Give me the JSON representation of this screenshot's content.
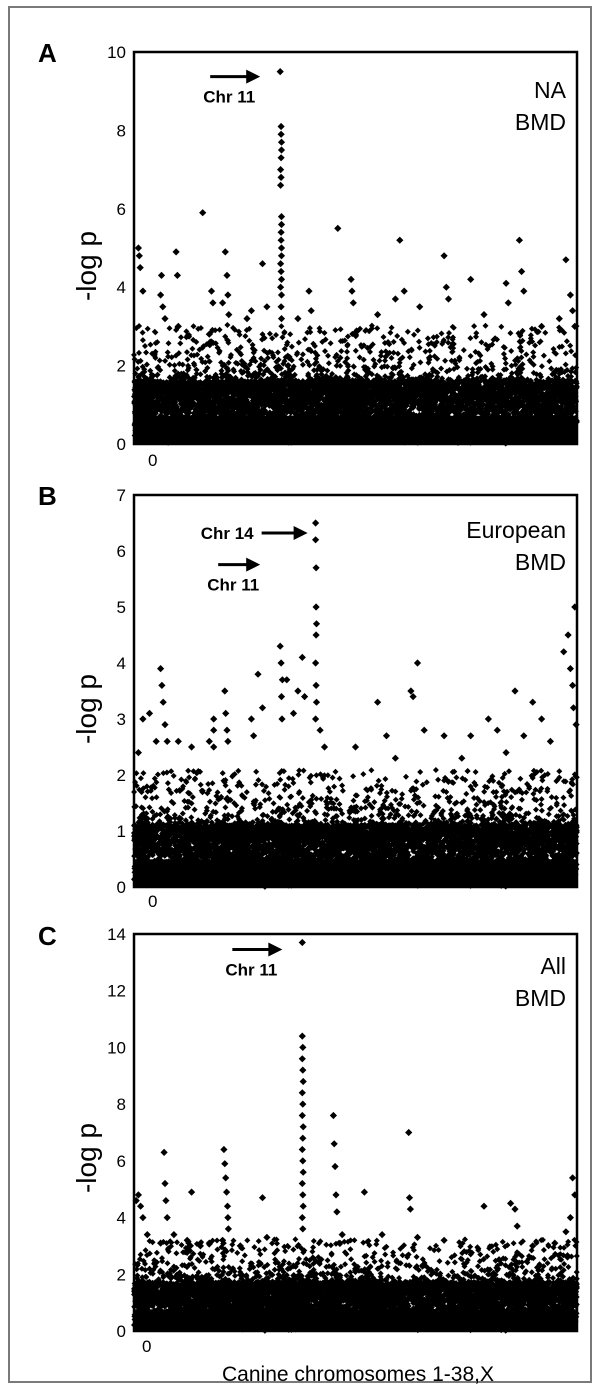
{
  "figure": {
    "xlabel": "Canine chromosomes 1-38,X"
  },
  "chart_data": [
    {
      "type": "scatter",
      "panel": "A",
      "ylabel": "-log p",
      "ylim": [
        0,
        10
      ],
      "yticks": [
        0,
        2,
        4,
        6,
        8,
        10
      ],
      "x_origin_label": "0",
      "legend": [
        "NA",
        "BMD"
      ],
      "annotations": [
        {
          "label": "Chr 11",
          "x": 0.33,
          "y": 9.5
        }
      ],
      "points": [
        {
          "x": 0.01,
          "y": 5.0
        },
        {
          "x": 0.012,
          "y": 4.8
        },
        {
          "x": 0.014,
          "y": 4.5
        },
        {
          "x": 0.02,
          "y": 3.9
        },
        {
          "x": 0.06,
          "y": 3.8
        },
        {
          "x": 0.065,
          "y": 3.5
        },
        {
          "x": 0.07,
          "y": 3.2
        },
        {
          "x": 0.062,
          "y": 4.3
        },
        {
          "x": 0.095,
          "y": 4.9
        },
        {
          "x": 0.098,
          "y": 4.3
        },
        {
          "x": 0.1,
          "y": 3.0
        },
        {
          "x": 0.155,
          "y": 5.9
        },
        {
          "x": 0.175,
          "y": 3.9
        },
        {
          "x": 0.178,
          "y": 3.6
        },
        {
          "x": 0.17,
          "y": 2.8
        },
        {
          "x": 0.172,
          "y": 2.6
        },
        {
          "x": 0.2,
          "y": 3.6
        },
        {
          "x": 0.206,
          "y": 4.9
        },
        {
          "x": 0.21,
          "y": 4.3
        },
        {
          "x": 0.212,
          "y": 3.8
        },
        {
          "x": 0.214,
          "y": 3.3
        },
        {
          "x": 0.255,
          "y": 3.2
        },
        {
          "x": 0.265,
          "y": 3.4
        },
        {
          "x": 0.29,
          "y": 4.6
        },
        {
          "x": 0.3,
          "y": 3.5
        },
        {
          "x": 0.33,
          "y": 9.5
        },
        {
          "x": 0.332,
          "y": 8.1
        },
        {
          "x": 0.332,
          "y": 7.9
        },
        {
          "x": 0.333,
          "y": 7.7
        },
        {
          "x": 0.333,
          "y": 7.5
        },
        {
          "x": 0.332,
          "y": 7.3
        },
        {
          "x": 0.331,
          "y": 7.0
        },
        {
          "x": 0.332,
          "y": 6.8
        },
        {
          "x": 0.331,
          "y": 6.6
        },
        {
          "x": 0.333,
          "y": 5.8
        },
        {
          "x": 0.333,
          "y": 5.6
        },
        {
          "x": 0.332,
          "y": 5.4
        },
        {
          "x": 0.332,
          "y": 5.2
        },
        {
          "x": 0.333,
          "y": 5.0
        },
        {
          "x": 0.333,
          "y": 4.8
        },
        {
          "x": 0.331,
          "y": 4.6
        },
        {
          "x": 0.332,
          "y": 4.4
        },
        {
          "x": 0.333,
          "y": 4.2
        },
        {
          "x": 0.331,
          "y": 4.0
        },
        {
          "x": 0.333,
          "y": 3.8
        },
        {
          "x": 0.332,
          "y": 3.5
        },
        {
          "x": 0.333,
          "y": 3.2
        },
        {
          "x": 0.37,
          "y": 3.2
        },
        {
          "x": 0.395,
          "y": 3.9
        },
        {
          "x": 0.4,
          "y": 3.4
        },
        {
          "x": 0.46,
          "y": 5.5
        },
        {
          "x": 0.49,
          "y": 4.2
        },
        {
          "x": 0.492,
          "y": 3.9
        },
        {
          "x": 0.495,
          "y": 3.6
        },
        {
          "x": 0.55,
          "y": 3.3
        },
        {
          "x": 0.59,
          "y": 3.7
        },
        {
          "x": 0.6,
          "y": 5.2
        },
        {
          "x": 0.61,
          "y": 3.9
        },
        {
          "x": 0.645,
          "y": 3.5
        },
        {
          "x": 0.7,
          "y": 4.8
        },
        {
          "x": 0.705,
          "y": 4.0
        },
        {
          "x": 0.71,
          "y": 3.7
        },
        {
          "x": 0.76,
          "y": 4.2
        },
        {
          "x": 0.79,
          "y": 3.3
        },
        {
          "x": 0.84,
          "y": 4.1
        },
        {
          "x": 0.845,
          "y": 3.6
        },
        {
          "x": 0.87,
          "y": 5.2
        },
        {
          "x": 0.875,
          "y": 4.4
        },
        {
          "x": 0.88,
          "y": 3.9
        },
        {
          "x": 0.92,
          "y": 3.0
        },
        {
          "x": 0.96,
          "y": 3.2
        },
        {
          "x": 0.975,
          "y": 4.7
        },
        {
          "x": 0.985,
          "y": 3.8
        },
        {
          "x": 0.99,
          "y": 3.4
        },
        {
          "x": 0.995,
          "y": 3.0
        }
      ]
    },
    {
      "type": "scatter",
      "panel": "B",
      "ylabel": "-log p",
      "ylim": [
        0,
        7
      ],
      "yticks": [
        0,
        1,
        2,
        3,
        4,
        5,
        6,
        7
      ],
      "x_origin_label": "0",
      "legend": [
        "European",
        "BMD"
      ],
      "annotations": [
        {
          "label": "Chr 14",
          "x": 0.41,
          "y": 6.5
        },
        {
          "label": "Chr 11",
          "x": 0.33,
          "y": 5.9
        }
      ],
      "points": [
        {
          "x": 0.01,
          "y": 2.4
        },
        {
          "x": 0.02,
          "y": 3.0
        },
        {
          "x": 0.035,
          "y": 3.1
        },
        {
          "x": 0.05,
          "y": 2.6
        },
        {
          "x": 0.06,
          "y": 3.9
        },
        {
          "x": 0.063,
          "y": 3.6
        },
        {
          "x": 0.066,
          "y": 3.3
        },
        {
          "x": 0.07,
          "y": 2.9
        },
        {
          "x": 0.075,
          "y": 2.6
        },
        {
          "x": 0.1,
          "y": 2.6
        },
        {
          "x": 0.13,
          "y": 2.5
        },
        {
          "x": 0.17,
          "y": 2.6
        },
        {
          "x": 0.18,
          "y": 3.0
        },
        {
          "x": 0.18,
          "y": 2.8
        },
        {
          "x": 0.18,
          "y": 2.5
        },
        {
          "x": 0.205,
          "y": 3.5
        },
        {
          "x": 0.207,
          "y": 3.1
        },
        {
          "x": 0.21,
          "y": 2.8
        },
        {
          "x": 0.212,
          "y": 2.6
        },
        {
          "x": 0.265,
          "y": 3.0
        },
        {
          "x": 0.27,
          "y": 2.7
        },
        {
          "x": 0.28,
          "y": 3.8
        },
        {
          "x": 0.29,
          "y": 3.2
        },
        {
          "x": 0.33,
          "y": 4.3
        },
        {
          "x": 0.332,
          "y": 4.0
        },
        {
          "x": 0.335,
          "y": 3.7
        },
        {
          "x": 0.333,
          "y": 3.4
        },
        {
          "x": 0.334,
          "y": 3.0
        },
        {
          "x": 0.345,
          "y": 3.7
        },
        {
          "x": 0.36,
          "y": 3.1
        },
        {
          "x": 0.37,
          "y": 3.5
        },
        {
          "x": 0.38,
          "y": 4.1
        },
        {
          "x": 0.385,
          "y": 3.4
        },
        {
          "x": 0.41,
          "y": 6.5
        },
        {
          "x": 0.41,
          "y": 6.2
        },
        {
          "x": 0.411,
          "y": 5.7
        },
        {
          "x": 0.411,
          "y": 5.0
        },
        {
          "x": 0.412,
          "y": 4.7
        },
        {
          "x": 0.411,
          "y": 4.5
        },
        {
          "x": 0.41,
          "y": 4.0
        },
        {
          "x": 0.411,
          "y": 3.6
        },
        {
          "x": 0.412,
          "y": 3.3
        },
        {
          "x": 0.41,
          "y": 3.0
        },
        {
          "x": 0.42,
          "y": 2.8
        },
        {
          "x": 0.43,
          "y": 2.5
        },
        {
          "x": 0.5,
          "y": 2.5
        },
        {
          "x": 0.55,
          "y": 3.3
        },
        {
          "x": 0.57,
          "y": 2.7
        },
        {
          "x": 0.59,
          "y": 2.3
        },
        {
          "x": 0.625,
          "y": 3.5
        },
        {
          "x": 0.63,
          "y": 3.4
        },
        {
          "x": 0.64,
          "y": 4.0
        },
        {
          "x": 0.655,
          "y": 2.8
        },
        {
          "x": 0.7,
          "y": 2.7
        },
        {
          "x": 0.74,
          "y": 2.3
        },
        {
          "x": 0.76,
          "y": 2.7
        },
        {
          "x": 0.8,
          "y": 3.0
        },
        {
          "x": 0.82,
          "y": 2.8
        },
        {
          "x": 0.84,
          "y": 2.4
        },
        {
          "x": 0.86,
          "y": 3.5
        },
        {
          "x": 0.88,
          "y": 2.7
        },
        {
          "x": 0.9,
          "y": 3.3
        },
        {
          "x": 0.92,
          "y": 3.0
        },
        {
          "x": 0.94,
          "y": 2.6
        },
        {
          "x": 0.97,
          "y": 4.2
        },
        {
          "x": 0.98,
          "y": 4.5
        },
        {
          "x": 0.985,
          "y": 3.9
        },
        {
          "x": 0.99,
          "y": 3.6
        },
        {
          "x": 0.995,
          "y": 5.0
        },
        {
          "x": 0.992,
          "y": 3.2
        },
        {
          "x": 0.998,
          "y": 2.9
        }
      ]
    },
    {
      "type": "scatter",
      "panel": "C",
      "ylabel": "-log p",
      "ylim": [
        0,
        14
      ],
      "yticks": [
        0,
        2,
        4,
        6,
        8,
        10,
        12,
        14
      ],
      "x_origin_label": "0",
      "legend": [
        "All",
        "BMD"
      ],
      "annotations": [
        {
          "label": "Chr 11",
          "x": 0.38,
          "y": 13.7
        }
      ],
      "points": [
        {
          "x": 0.005,
          "y": 4.6
        },
        {
          "x": 0.01,
          "y": 4.8
        },
        {
          "x": 0.015,
          "y": 4.4
        },
        {
          "x": 0.02,
          "y": 4.0
        },
        {
          "x": 0.03,
          "y": 3.4
        },
        {
          "x": 0.06,
          "y": 3.1
        },
        {
          "x": 0.068,
          "y": 6.3
        },
        {
          "x": 0.07,
          "y": 5.2
        },
        {
          "x": 0.072,
          "y": 4.6
        },
        {
          "x": 0.075,
          "y": 4.0
        },
        {
          "x": 0.09,
          "y": 3.4
        },
        {
          "x": 0.12,
          "y": 3.2
        },
        {
          "x": 0.13,
          "y": 4.9
        },
        {
          "x": 0.15,
          "y": 3.0
        },
        {
          "x": 0.17,
          "y": 3.1
        },
        {
          "x": 0.2,
          "y": 3.2
        },
        {
          "x": 0.203,
          "y": 6.4
        },
        {
          "x": 0.205,
          "y": 5.9
        },
        {
          "x": 0.207,
          "y": 5.4
        },
        {
          "x": 0.209,
          "y": 4.9
        },
        {
          "x": 0.211,
          "y": 4.4
        },
        {
          "x": 0.212,
          "y": 4.0
        },
        {
          "x": 0.213,
          "y": 3.6
        },
        {
          "x": 0.24,
          "y": 3.0
        },
        {
          "x": 0.29,
          "y": 4.7
        },
        {
          "x": 0.3,
          "y": 3.3
        },
        {
          "x": 0.38,
          "y": 13.7
        },
        {
          "x": 0.38,
          "y": 10.4
        },
        {
          "x": 0.381,
          "y": 10.0
        },
        {
          "x": 0.38,
          "y": 9.6
        },
        {
          "x": 0.381,
          "y": 9.2
        },
        {
          "x": 0.382,
          "y": 8.8
        },
        {
          "x": 0.38,
          "y": 8.4
        },
        {
          "x": 0.381,
          "y": 8.0
        },
        {
          "x": 0.38,
          "y": 7.6
        },
        {
          "x": 0.382,
          "y": 7.2
        },
        {
          "x": 0.381,
          "y": 6.8
        },
        {
          "x": 0.38,
          "y": 6.4
        },
        {
          "x": 0.381,
          "y": 6.0
        },
        {
          "x": 0.382,
          "y": 5.6
        },
        {
          "x": 0.38,
          "y": 5.2
        },
        {
          "x": 0.381,
          "y": 4.8
        },
        {
          "x": 0.382,
          "y": 4.4
        },
        {
          "x": 0.38,
          "y": 4.0
        },
        {
          "x": 0.381,
          "y": 3.6
        },
        {
          "x": 0.45,
          "y": 7.6
        },
        {
          "x": 0.452,
          "y": 6.6
        },
        {
          "x": 0.454,
          "y": 5.8
        },
        {
          "x": 0.456,
          "y": 4.8
        },
        {
          "x": 0.458,
          "y": 4.2
        },
        {
          "x": 0.47,
          "y": 3.4
        },
        {
          "x": 0.52,
          "y": 4.9
        },
        {
          "x": 0.56,
          "y": 3.4
        },
        {
          "x": 0.62,
          "y": 7.0
        },
        {
          "x": 0.622,
          "y": 4.7
        },
        {
          "x": 0.624,
          "y": 4.3
        },
        {
          "x": 0.64,
          "y": 3.3
        },
        {
          "x": 0.7,
          "y": 3.2
        },
        {
          "x": 0.79,
          "y": 4.4
        },
        {
          "x": 0.85,
          "y": 4.5
        },
        {
          "x": 0.86,
          "y": 4.3
        },
        {
          "x": 0.865,
          "y": 3.7
        },
        {
          "x": 0.9,
          "y": 3.0
        },
        {
          "x": 0.95,
          "y": 3.1
        },
        {
          "x": 0.975,
          "y": 3.5
        },
        {
          "x": 0.985,
          "y": 4.0
        },
        {
          "x": 0.99,
          "y": 5.4
        },
        {
          "x": 0.995,
          "y": 4.8
        }
      ]
    }
  ]
}
